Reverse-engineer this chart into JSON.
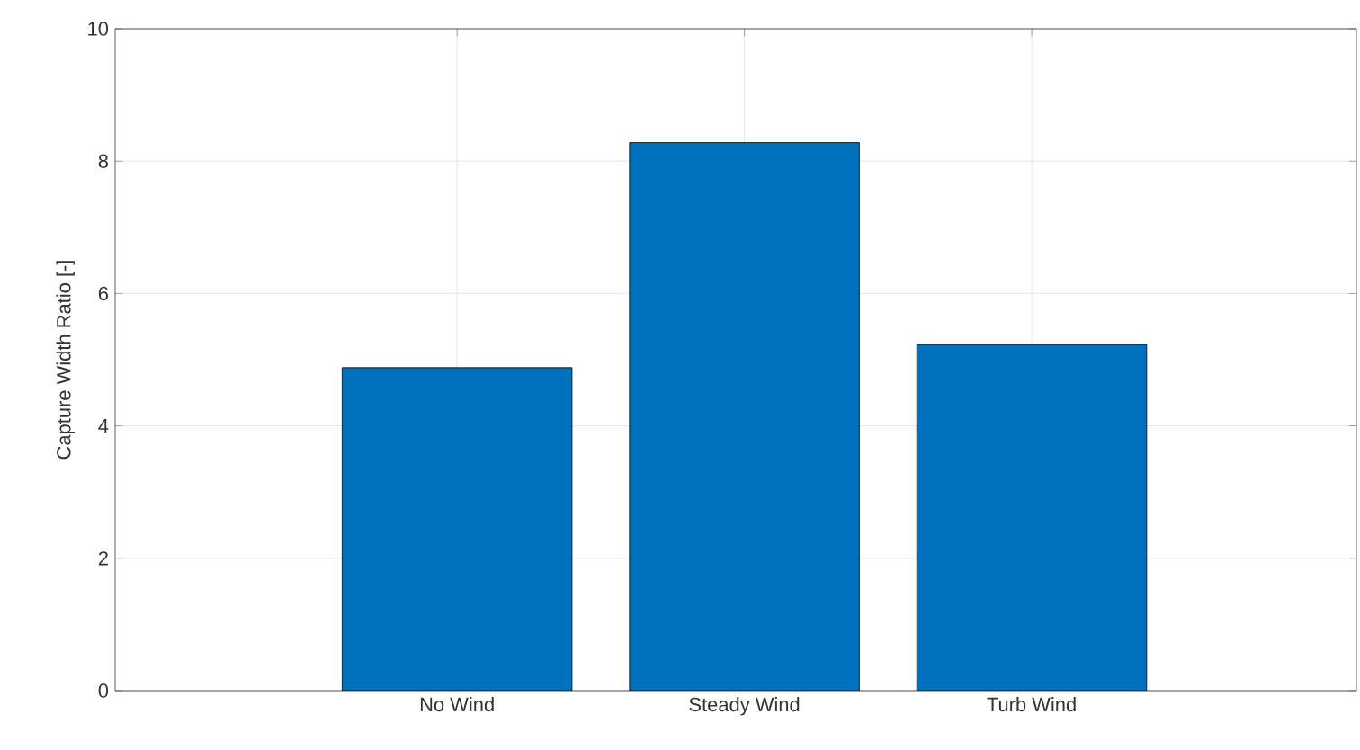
{
  "chart_data": {
    "type": "bar",
    "ylabel": "Capture Width Ratio [-]",
    "categories": [
      "No Wind",
      "Steady Wind",
      "Turb Wind"
    ],
    "values": [
      4.88,
      8.28,
      5.23
    ],
    "color": "#0072bd",
    "ylim": [
      0,
      10
    ],
    "yticks": [
      0,
      2,
      4,
      6,
      8,
      10
    ],
    "grid": true
  }
}
